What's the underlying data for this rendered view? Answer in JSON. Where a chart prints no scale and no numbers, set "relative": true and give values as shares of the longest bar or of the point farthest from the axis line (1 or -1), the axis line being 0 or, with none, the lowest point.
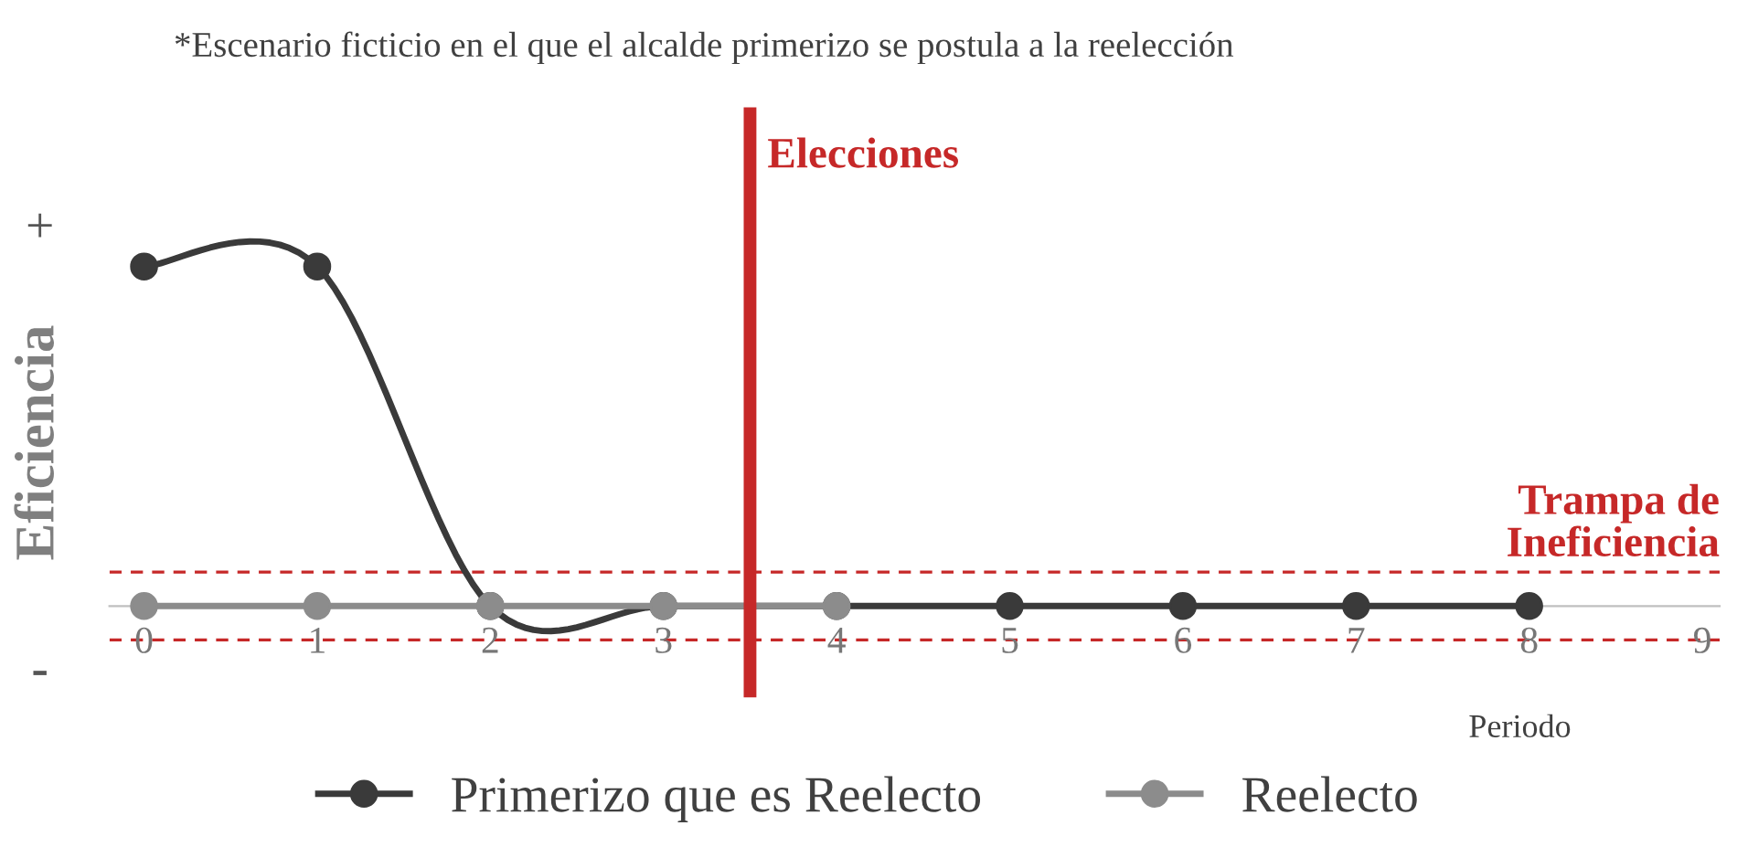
{
  "chart_data": {
    "type": "line",
    "subtitle": "*Escenario ficticio en el que el alcalde primerizo se postula a la reelección",
    "ylabel": "Eficiencia",
    "xlabel": "Periodo",
    "annotations": [
      "+",
      "-"
    ],
    "relative": true,
    "x": [
      0,
      1,
      2,
      3,
      4,
      5,
      6,
      7,
      8
    ],
    "xlim": [
      -0.2,
      9.1
    ],
    "xticks": [
      0,
      1,
      2,
      3,
      4,
      5,
      6,
      7,
      8,
      9
    ],
    "series": [
      {
        "name": "Primerizo que es Reelecto",
        "color": "#3a3a3a",
        "values": [
          1,
          1,
          0,
          0,
          0,
          0,
          0,
          0,
          0
        ]
      },
      {
        "name": "Reelecto",
        "color": "#8c8c8c",
        "x": [
          0,
          1,
          2,
          3,
          4
        ],
        "values": [
          0,
          0,
          0,
          0,
          0
        ]
      }
    ],
    "ref_lines": [
      {
        "axis": "x",
        "value": 3.5,
        "label": "Elecciones",
        "color": "#c62828",
        "line_style": "solid"
      },
      {
        "axis": "y",
        "value": 0.1,
        "label": "Trampa de\nIneficiencia",
        "color": "#c62828",
        "line_style": "dashed"
      },
      {
        "axis": "y",
        "value": -0.1,
        "label": null,
        "color": "#c62828",
        "line_style": "dashed"
      }
    ],
    "marker": "circle",
    "line_style": "solid",
    "grid": false,
    "legend": "bottom"
  }
}
